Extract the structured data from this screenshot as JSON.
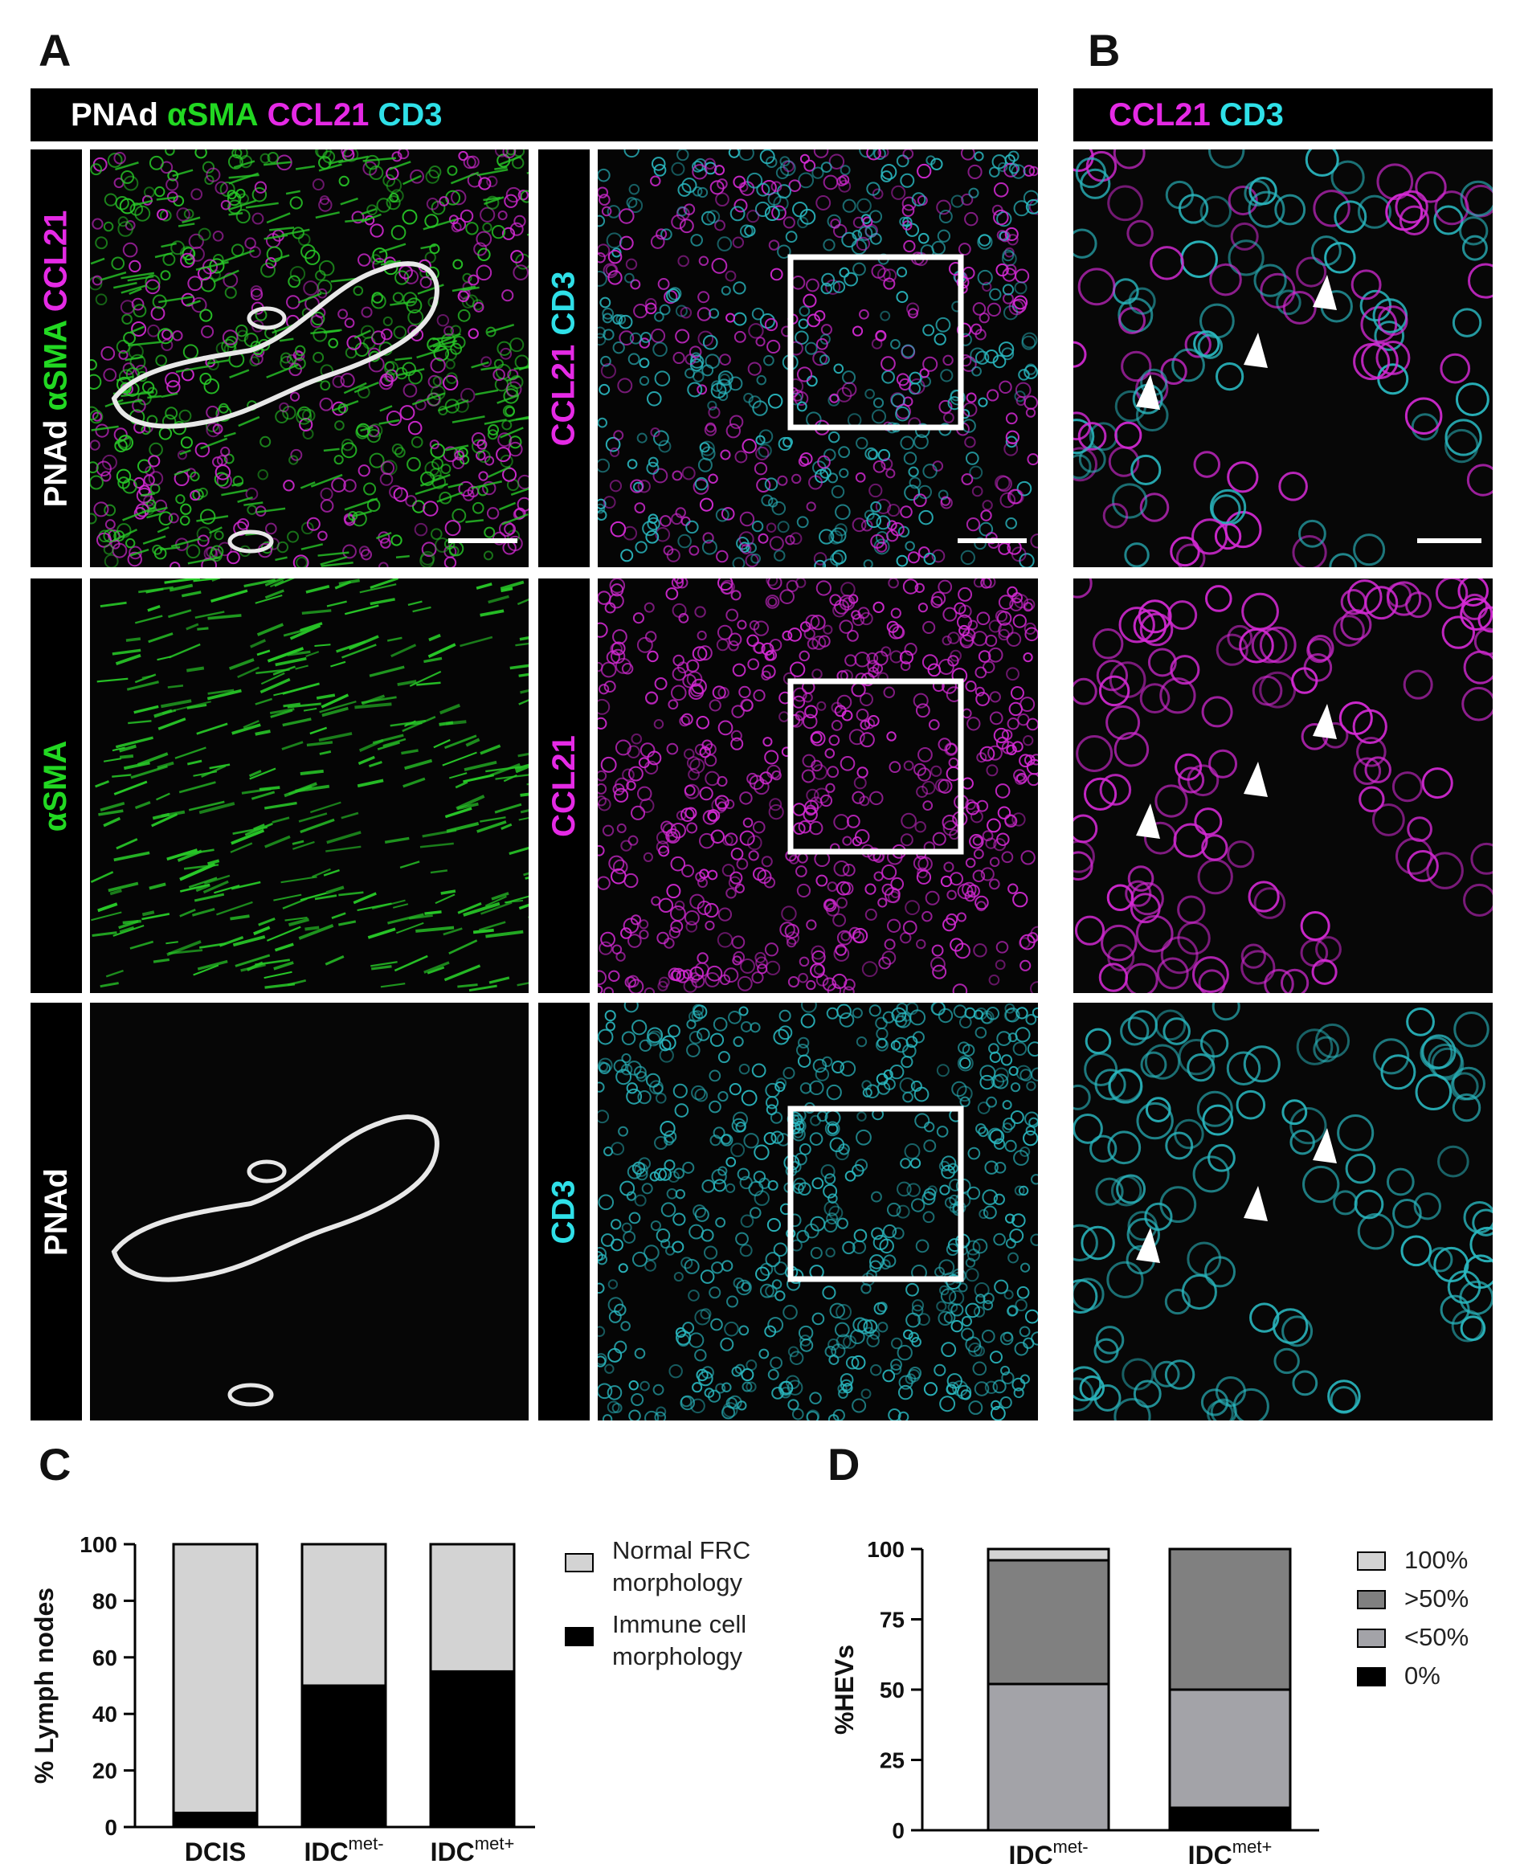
{
  "panel_letters": {
    "a": "A",
    "b": "B",
    "c": "C",
    "d": "D"
  },
  "colors": {
    "white": "#ffffff",
    "green": "#22d822",
    "magenta": "#e52ae5",
    "cyan": "#2fe0e8"
  },
  "header_a": {
    "pnad": "PNAd",
    "asma": "αSMA",
    "ccl21": "CCL21",
    "cd3": "CD3"
  },
  "header_b": {
    "ccl21": "CCL21",
    "cd3": "CD3"
  },
  "row_labels": {
    "r1_left": {
      "pnad": "PNAd",
      "asma": "αSMA",
      "ccl21": "CCL21"
    },
    "r1_right": {
      "ccl21": "CCL21",
      "cd3": "CD3"
    },
    "r2_left": "αSMA",
    "r2_right": "CCL21",
    "r3_left": "PNAd",
    "r3_right": "CD3"
  },
  "chart_data": [
    {
      "type": "bar",
      "stacked": true,
      "ylabel": "% Lymph nodes",
      "ylim": [
        0,
        100
      ],
      "yticks": [
        "0",
        "20",
        "40",
        "60",
        "80",
        "100"
      ],
      "categories": [
        {
          "base": "DCIS",
          "sup": ""
        },
        {
          "base": "IDC",
          "sup": "met-"
        },
        {
          "base": "IDC",
          "sup": "met+"
        }
      ],
      "series": [
        {
          "name": "Immune cell morphology",
          "legend_lines": [
            "Immune cell",
            "morphology"
          ],
          "color": "#000000",
          "values": [
            5,
            50,
            55
          ]
        },
        {
          "name": "Normal FRC morphology",
          "legend_lines": [
            "Normal FRC",
            "morphology"
          ],
          "color": "#d3d3d3",
          "values": [
            95,
            50,
            45
          ]
        }
      ]
    },
    {
      "type": "bar",
      "stacked": true,
      "ylabel": "%HEVs",
      "ylim": [
        0,
        100
      ],
      "yticks": [
        "0",
        "25",
        "50",
        "75",
        "100"
      ],
      "categories": [
        {
          "base": "IDC",
          "sup": "met-"
        },
        {
          "base": "IDC",
          "sup": "met+"
        }
      ],
      "series": [
        {
          "name": "0%",
          "color": "#000000",
          "values": [
            0,
            8
          ]
        },
        {
          "name": "<50%",
          "color": "#a3a3a8",
          "values": [
            52,
            42
          ]
        },
        {
          "name": ">50%",
          "color": "#808080",
          "values": [
            44,
            50
          ]
        },
        {
          "name": "100%",
          "color": "#d3d3d3",
          "values": [
            4,
            0
          ]
        }
      ],
      "legend_order": [
        "100%",
        ">50%",
        "<50%",
        "0%"
      ]
    }
  ]
}
